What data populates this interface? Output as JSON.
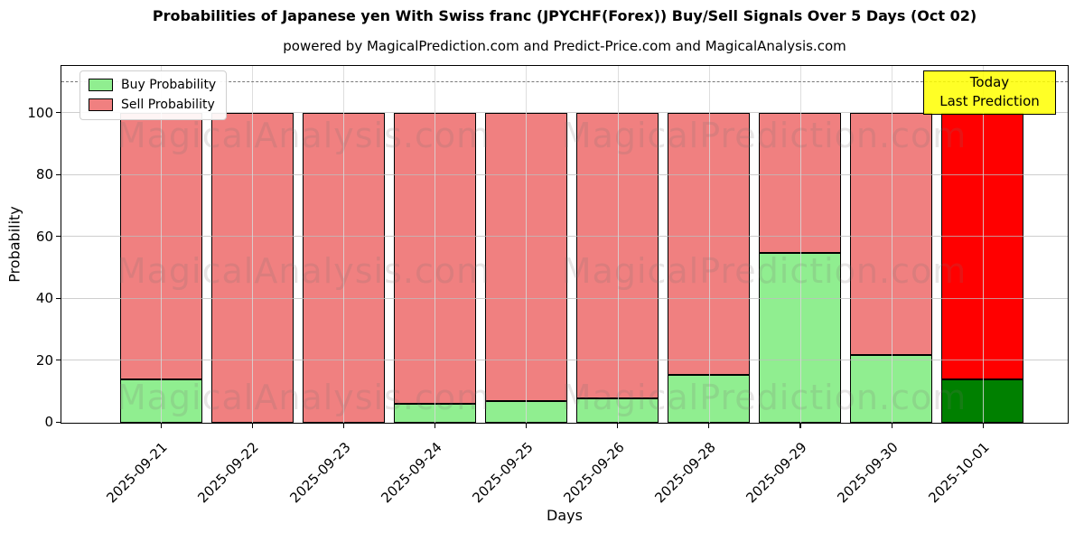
{
  "chart_data": {
    "type": "bar",
    "stacked": true,
    "title": "Probabilities of Japanese yen With Swiss franc (JPYCHF(Forex)) Buy/Sell Signals Over 5 Days (Oct 02)",
    "subtitle": "powered by MagicalPrediction.com and Predict-Price.com and MagicalAnalysis.com",
    "xlabel": "Days",
    "ylabel": "Probability",
    "categories": [
      "2025-09-21",
      "2025-09-22",
      "2025-09-23",
      "2025-09-24",
      "2025-09-25",
      "2025-09-26",
      "2025-09-28",
      "2025-09-29",
      "2025-09-30",
      "2025-10-01"
    ],
    "series": [
      {
        "name": "Buy Probability",
        "color": "#90EE90",
        "values": [
          14,
          0,
          0,
          6,
          7,
          8,
          15.5,
          55,
          22,
          14
        ]
      },
      {
        "name": "Sell Probability",
        "color": "#F08080",
        "values": [
          86,
          100,
          100,
          94,
          93,
          92,
          84.5,
          45,
          78,
          86
        ]
      }
    ],
    "highlight": {
      "index": 9,
      "buy_color": "#008000",
      "sell_color": "#FF0000"
    },
    "yticks": [
      0,
      20,
      40,
      60,
      80,
      100
    ],
    "ylim": [
      0,
      115
    ],
    "threshold_line": {
      "y": 110,
      "style": "dashed",
      "color": "#787878"
    },
    "grid": true,
    "legend_position": "upper-left",
    "annotation": {
      "line1": "Today",
      "line2": "Last Prediction",
      "bg_color": "#FFFF00",
      "border_color": "#000000"
    },
    "watermarks": {
      "left_text": "MagicalAnalysis.com",
      "right_text": "MagicalPrediction.com"
    }
  }
}
